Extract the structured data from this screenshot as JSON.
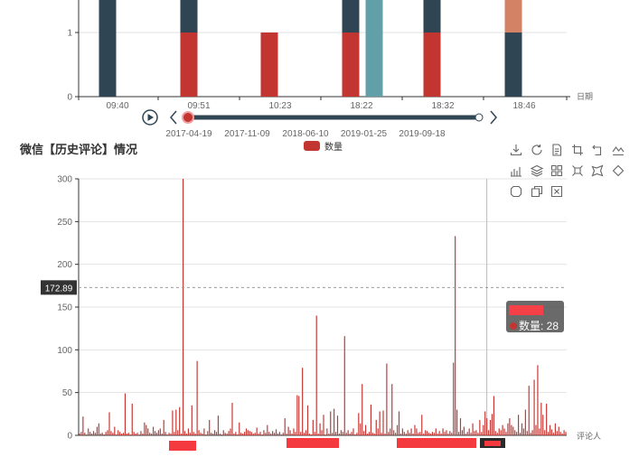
{
  "chart_data": [
    {
      "type": "bar",
      "stacked": true,
      "x_axis_label": "日期",
      "categories": [
        "09:40",
        "09:51",
        "10:23",
        "18:22",
        "18:22",
        "18:32",
        "18:46"
      ],
      "x_tick_labels": [
        "09:40",
        "09:51",
        "10:23",
        "18:22",
        "18:32",
        "18:46"
      ],
      "y_tick_labels": [
        "0",
        "1"
      ],
      "ylim": [
        0,
        2
      ],
      "series": [
        {
          "color": "#c23531",
          "values": [
            0,
            1,
            1,
            1,
            0,
            1,
            0
          ]
        },
        {
          "color": "#2f4554",
          "values": [
            2,
            1,
            0,
            1,
            0,
            1,
            1
          ]
        },
        {
          "color": "#61a0a8",
          "values": [
            0,
            0,
            0,
            0,
            2,
            0,
            0
          ]
        },
        {
          "color": "#d48265",
          "values": [
            0,
            0,
            0,
            0,
            0,
            0,
            1
          ]
        }
      ],
      "timeline": {
        "dates": [
          "2017-04-19",
          "2017-11-09",
          "2018-06-10",
          "2019-01-25",
          "2019-09-18"
        ],
        "current": "2017-04-19",
        "progress": 0
      }
    },
    {
      "type": "bar",
      "title": "微信【历史评论】情况",
      "xlabel": "评论人",
      "ylim": [
        0,
        300
      ],
      "y_tick_labels": [
        "0",
        "50",
        "100",
        "150",
        "200",
        "250",
        "300"
      ],
      "grid": true,
      "legend": {
        "position": "top-center",
        "entries": [
          "数量"
        ]
      },
      "series": [
        {
          "name": "数量",
          "color": "#c23531",
          "values": [
            2,
            4,
            22,
            3,
            1,
            8,
            4,
            2,
            5,
            3,
            10,
            14,
            2,
            3,
            1,
            4,
            6,
            27,
            5,
            3,
            10,
            1,
            6,
            4,
            2,
            3,
            49,
            2,
            3,
            1,
            37,
            4,
            2,
            3,
            1,
            5,
            2,
            15,
            12,
            8,
            3,
            2,
            10,
            5,
            3,
            6,
            8,
            2,
            18,
            4,
            1,
            3,
            2,
            29,
            4,
            30,
            6,
            33,
            2,
            300,
            5,
            2,
            8,
            3,
            35,
            4,
            2,
            87,
            6,
            3,
            2,
            8,
            1,
            5,
            18,
            3,
            2,
            6,
            4,
            23,
            2,
            1,
            6,
            3,
            2,
            5,
            8,
            38,
            2,
            4,
            1,
            15,
            3,
            2,
            4,
            8,
            6,
            5,
            4,
            2,
            3,
            9,
            2,
            4,
            1,
            6,
            3,
            12,
            4,
            2,
            5,
            3,
            7,
            2,
            4,
            1,
            3,
            20,
            2,
            10,
            6,
            2,
            8,
            4,
            47,
            46,
            4,
            79,
            3,
            6,
            35,
            2,
            1,
            18,
            4,
            140,
            2,
            14,
            6,
            24,
            1,
            8,
            2,
            28,
            3,
            31,
            4,
            23,
            2,
            6,
            4,
            116,
            3,
            6,
            2,
            4,
            8,
            1,
            3,
            26,
            14,
            60,
            5,
            12,
            2,
            4,
            36,
            3,
            2,
            18,
            8,
            28,
            3,
            29,
            2,
            84,
            4,
            8,
            60,
            6,
            3,
            12,
            28,
            2,
            8,
            4,
            2,
            6,
            3,
            8,
            2,
            12,
            8,
            3,
            4,
            24,
            2,
            6,
            5,
            3,
            2,
            4,
            3,
            8,
            2,
            5,
            2,
            8,
            4,
            6,
            2,
            5,
            3,
            85,
            233,
            30,
            4,
            20,
            6,
            10,
            2,
            4,
            8,
            3,
            14,
            5,
            6,
            3,
            18,
            4,
            12,
            28,
            20,
            6,
            18,
            25,
            46,
            5,
            3,
            8,
            6,
            12,
            8,
            4,
            14,
            20,
            12,
            10,
            6,
            4,
            24,
            3,
            14,
            8,
            30,
            5,
            58,
            3,
            6,
            65,
            12,
            82,
            8,
            38,
            24,
            6,
            37,
            4,
            12,
            7,
            3,
            14,
            5,
            10,
            4,
            2,
            6,
            4
          ]
        }
      ],
      "mark_line": {
        "label": "172.89",
        "value": 172.89
      },
      "tooltip": {
        "series_name": "数量",
        "value": "28",
        "text": "数量: 28"
      },
      "crosshair_index": 232,
      "data_zoom": {
        "mode": "slider"
      }
    }
  ]
}
